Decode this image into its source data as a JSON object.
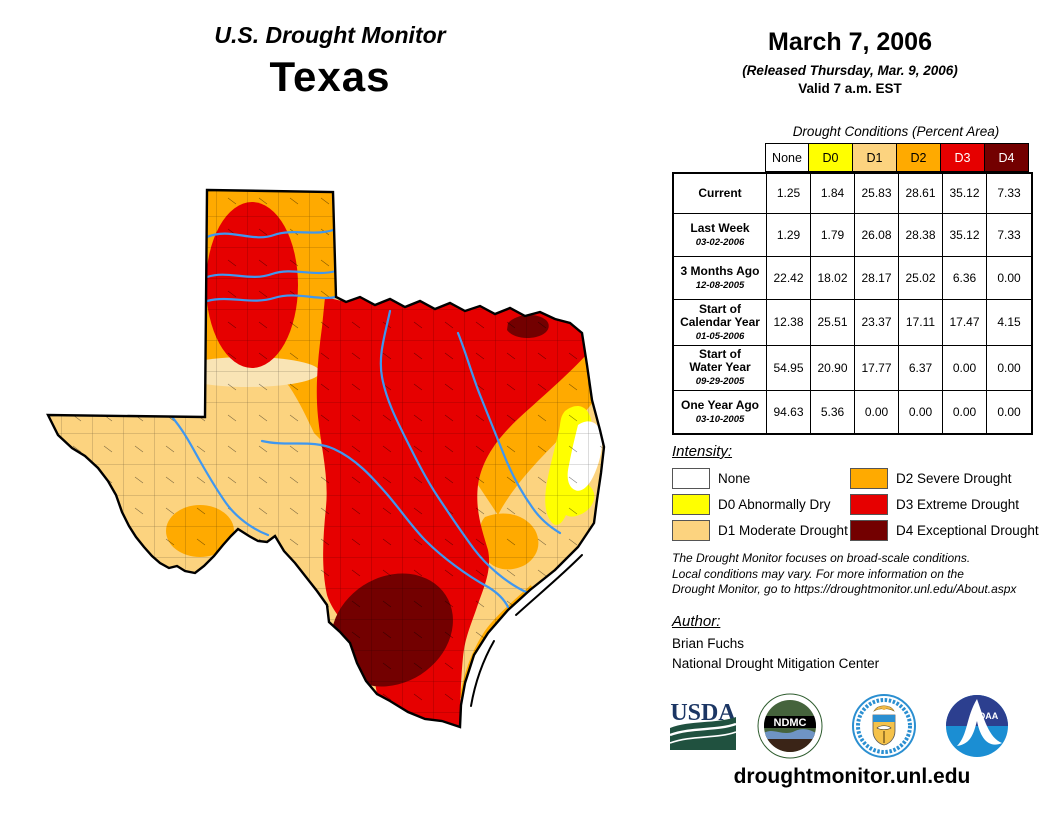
{
  "title": {
    "line1": "U.S. Drought Monitor",
    "line2": "Texas"
  },
  "date_block": {
    "date": "March 7, 2006",
    "released": "(Released Thursday, Mar. 9, 2006)",
    "valid": "Valid 7 a.m. EST"
  },
  "table": {
    "caption": "Drought Conditions (Percent Area)",
    "columns": [
      "None",
      "D0",
      "D1",
      "D2",
      "D3",
      "D4"
    ],
    "column_colors": [
      "#FFFFFF",
      "#FFFF00",
      "#FCD37F",
      "#FFAA00",
      "#E60000",
      "#730000"
    ],
    "column_text_colors": [
      "#000000",
      "#000000",
      "#000000",
      "#000000",
      "#FFFFFF",
      "#FFFFFF"
    ],
    "rows": [
      {
        "label1": "Current",
        "label2": "",
        "date": "",
        "values": [
          "1.25",
          "1.84",
          "25.83",
          "28.61",
          "35.12",
          "7.33"
        ]
      },
      {
        "label1": "Last Week",
        "label2": "",
        "date": "03-02-2006",
        "values": [
          "1.29",
          "1.79",
          "26.08",
          "28.38",
          "35.12",
          "7.33"
        ]
      },
      {
        "label1": "3 Months Ago",
        "label2": "",
        "date": "12-08-2005",
        "values": [
          "22.42",
          "18.02",
          "28.17",
          "25.02",
          "6.36",
          "0.00"
        ]
      },
      {
        "label1": "Start of",
        "label2": "Calendar Year",
        "date": "01-05-2006",
        "values": [
          "12.38",
          "25.51",
          "23.37",
          "17.11",
          "17.47",
          "4.15"
        ]
      },
      {
        "label1": "Start of",
        "label2": "Water Year",
        "date": "09-29-2005",
        "values": [
          "54.95",
          "20.90",
          "17.77",
          "6.37",
          "0.00",
          "0.00"
        ]
      },
      {
        "label1": "One Year Ago",
        "label2": "",
        "date": "03-10-2005",
        "values": [
          "94.63",
          "5.36",
          "0.00",
          "0.00",
          "0.00",
          "0.00"
        ]
      }
    ]
  },
  "legend": {
    "heading": "Intensity:",
    "items": [
      {
        "label": "None",
        "color": "#FFFFFF"
      },
      {
        "label": "D0 Abnormally Dry",
        "color": "#FFFF00"
      },
      {
        "label": "D1 Moderate Drought",
        "color": "#FCD37F"
      },
      {
        "label": "D2 Severe Drought",
        "color": "#FFAA00"
      },
      {
        "label": "D3 Extreme Drought",
        "color": "#E60000"
      },
      {
        "label": "D4 Exceptional Drought",
        "color": "#730000"
      }
    ]
  },
  "disclaimer": [
    "The Drought Monitor focuses on broad-scale conditions.",
    "Local conditions may vary. For more information on the",
    "Drought Monitor, go to https://droughtmonitor.unl.edu/About.aspx"
  ],
  "author": {
    "heading": "Author:",
    "name": "Brian Fuchs",
    "org": "National Drought Mitigation Center"
  },
  "footer": {
    "url": "droughtmonitor.unl.edu"
  },
  "logos": {
    "usda_text": "USDA",
    "ndmc_text": "NDMC",
    "noaa_text": "NOAA"
  },
  "map": {
    "region": "Texas",
    "colors": {
      "none": "#FFFFFF",
      "d0": "#FFFF00",
      "d1": "#FCD37F",
      "d2": "#FFAA00",
      "d3": "#E60000",
      "d4": "#730000",
      "river": "#3F97F0",
      "border": "#000000"
    }
  }
}
